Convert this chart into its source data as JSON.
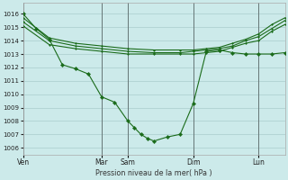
{
  "bg_color": "#cceaea",
  "grid_color": "#aacccc",
  "line_color": "#1a6b1a",
  "marker_color": "#1a6b1a",
  "xlabel": "Pression niveau de la mer( hPa )",
  "ylim": [
    1005.5,
    1016.8
  ],
  "yticks": [
    1006,
    1007,
    1008,
    1009,
    1010,
    1011,
    1012,
    1013,
    1014,
    1015,
    1016
  ],
  "xtick_labels": [
    "Ven",
    "Mar",
    "Sam",
    "Dim",
    "Lun"
  ],
  "xtick_pos": [
    0,
    6,
    8,
    13,
    18
  ],
  "xlim": [
    0,
    20
  ],
  "vline_pos": [
    0,
    6,
    8,
    13,
    18
  ],
  "s1_x": [
    0,
    1,
    2,
    3,
    4,
    5,
    6,
    7,
    8,
    8.5,
    9,
    9.5,
    10,
    11,
    12,
    13,
    14,
    15,
    16,
    17,
    18,
    19,
    20
  ],
  "s1_y": [
    1016.0,
    1014.9,
    1014.1,
    1012.2,
    1011.9,
    1011.5,
    1009.8,
    1009.4,
    1008.0,
    1007.5,
    1007.0,
    1006.7,
    1006.5,
    1006.8,
    1007.0,
    1009.3,
    1013.2,
    1013.3,
    1013.1,
    1013.0,
    1013.0,
    1013.0,
    1013.1
  ],
  "s2_x": [
    0,
    2,
    4,
    6,
    8,
    10,
    12,
    13,
    14,
    15,
    16,
    17,
    18,
    19,
    20
  ],
  "s2_y": [
    1015.7,
    1014.2,
    1013.8,
    1013.6,
    1013.4,
    1013.3,
    1013.3,
    1013.3,
    1013.4,
    1013.5,
    1013.8,
    1014.1,
    1014.5,
    1015.2,
    1015.7
  ],
  "s3_x": [
    0,
    2,
    4,
    6,
    8,
    10,
    12,
    13,
    14,
    15,
    16,
    17,
    18,
    19,
    20
  ],
  "s3_y": [
    1015.4,
    1014.0,
    1013.6,
    1013.4,
    1013.2,
    1013.1,
    1013.1,
    1013.2,
    1013.3,
    1013.4,
    1013.6,
    1014.0,
    1014.3,
    1014.9,
    1015.5
  ],
  "s4_x": [
    0,
    2,
    4,
    6,
    8,
    10,
    12,
    13,
    14,
    15,
    16,
    17,
    18,
    19,
    20
  ],
  "s4_y": [
    1015.1,
    1013.7,
    1013.4,
    1013.2,
    1013.0,
    1013.0,
    1013.0,
    1013.0,
    1013.1,
    1013.2,
    1013.5,
    1013.8,
    1014.0,
    1014.7,
    1015.2
  ]
}
